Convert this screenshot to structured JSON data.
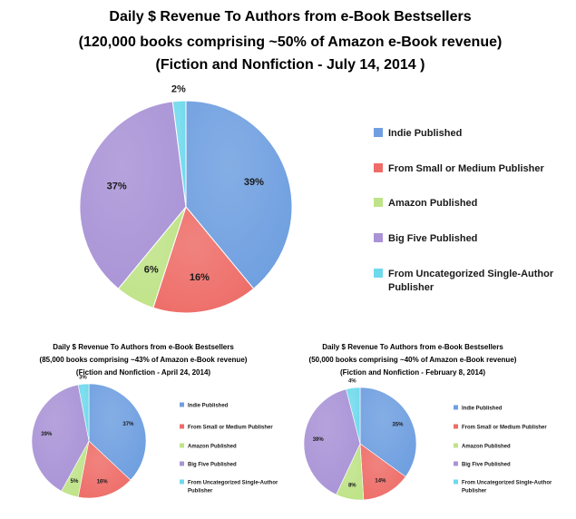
{
  "chart_data": [
    {
      "type": "pie",
      "title_lines": [
        "Daily $ Revenue To Authors from e-Book Bestsellers",
        "(120,000 books comprising ~50% of Amazon e-Book revenue)",
        "(Fiction and Nonfiction - July 14, 2014 )"
      ],
      "labels": [
        "Indie Published",
        "From Small or Medium Publisher",
        "Amazon Published",
        "Big Five Published",
        "From Uncategorized Single-Author Publisher"
      ],
      "values": [
        39,
        16,
        6,
        37,
        2
      ],
      "value_labels": [
        "39%",
        "16%",
        "6%",
        "37%",
        "2%"
      ],
      "colors": [
        "#6f9fe0",
        "#ee6d68",
        "#bfe388",
        "#a993d6",
        "#6fd9ec"
      ],
      "legend": "right"
    },
    {
      "type": "pie",
      "title_lines": [
        "Daily $ Revenue To Authors from e-Book Bestsellers",
        "(85,000 books comprising ~43% of Amazon e-Book revenue)",
        "(Fiction and Nonfiction - April 24, 2014)"
      ],
      "labels": [
        "Indie Published",
        "From Small or Medium Publisher",
        "Amazon Published",
        "Big Five Published",
        "From Uncategorized Single-Author Publisher"
      ],
      "values": [
        37,
        16,
        5,
        39,
        3
      ],
      "value_labels": [
        "37%",
        "16%",
        "5%",
        "39%",
        "3%"
      ],
      "colors": [
        "#6f9fe0",
        "#ee6d68",
        "#bfe388",
        "#a993d6",
        "#6fd9ec"
      ],
      "legend": "right"
    },
    {
      "type": "pie",
      "title_lines": [
        "Daily $ Revenue To Authors from e-Book Bestsellers",
        "(50,000 books comprising ~40% of Amazon e-Book revenue)",
        "(Fiction and Nonfiction - February 8, 2014)"
      ],
      "labels": [
        "Indie Published",
        "From Small or Medium Publisher",
        "Amazon Published",
        "Big Five Published",
        "From Uncategorized Single-Author Publisher"
      ],
      "values": [
        35,
        14,
        8,
        39,
        4
      ],
      "value_labels": [
        "35%",
        "14%",
        "8%",
        "39%",
        "4%"
      ],
      "colors": [
        "#6f9fe0",
        "#ee6d68",
        "#bfe388",
        "#a993d6",
        "#6fd9ec"
      ],
      "legend": "right"
    }
  ]
}
